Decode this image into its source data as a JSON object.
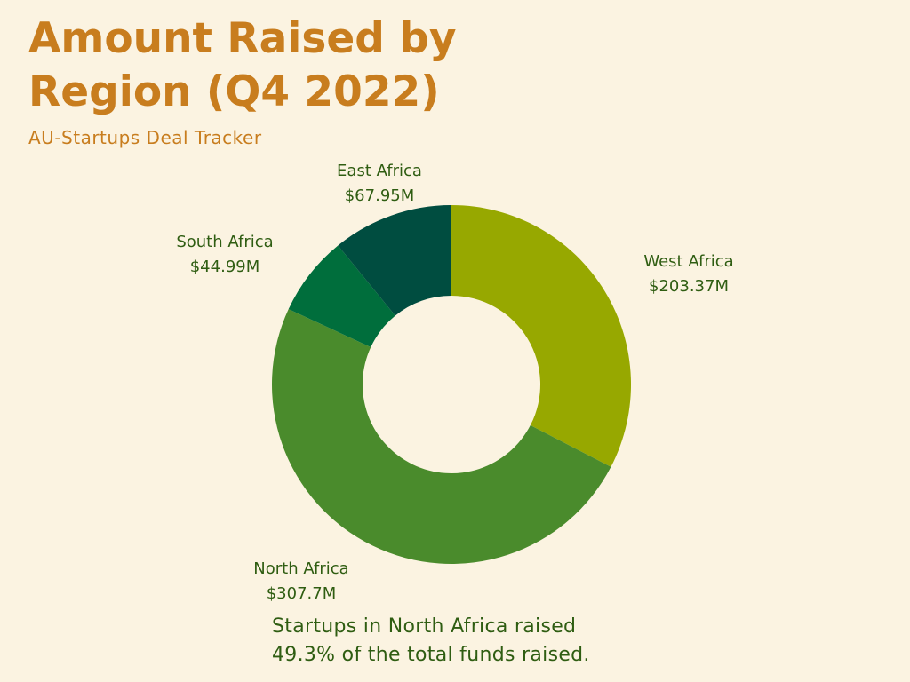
{
  "header": {
    "title_line1": "Amount Raised by",
    "title_line2": "Region (Q4 2022)",
    "subtitle": "AU-Startups Deal Tracker"
  },
  "footnote": {
    "line1": "Startups in North Africa raised",
    "line2": "49.3% of the total funds raised."
  },
  "chart_data": {
    "type": "pie",
    "variant": "donut",
    "title": "Amount Raised by Region (Q4 2022)",
    "subtitle": "AU-Startups Deal Tracker",
    "unit": "USD millions",
    "start_angle_deg": 0,
    "direction": "clockwise",
    "slices": [
      {
        "name": "West Africa",
        "value": 203.37,
        "label": "$203.37M",
        "color": "#97a800"
      },
      {
        "name": "North Africa",
        "value": 307.7,
        "label": "$307.7M",
        "color": "#4a8b2c"
      },
      {
        "name": "South Africa",
        "value": 44.99,
        "label": "$44.99M",
        "color": "#006e3c"
      },
      {
        "name": "East Africa",
        "value": 67.95,
        "label": "$67.95M",
        "color": "#004d40"
      }
    ],
    "legend": "none"
  }
}
